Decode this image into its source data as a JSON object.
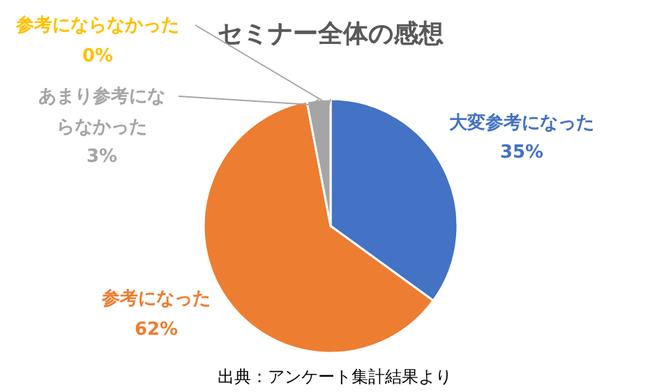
{
  "chart_data": {
    "type": "pie",
    "title": "セミナー全体の感想",
    "categories": [
      "大変参考になった",
      "参考になった",
      "あまり参考にならなかった",
      "参考にならなかった"
    ],
    "values": [
      35,
      62,
      3,
      0
    ],
    "colors": [
      "#4472c4",
      "#ed7d31",
      "#a5a5a5",
      "#ffc000"
    ],
    "value_labels": [
      "35%",
      "62%",
      "3%",
      "0%"
    ],
    "annotations": [
      "出典：アンケート集計結果より"
    ]
  }
}
